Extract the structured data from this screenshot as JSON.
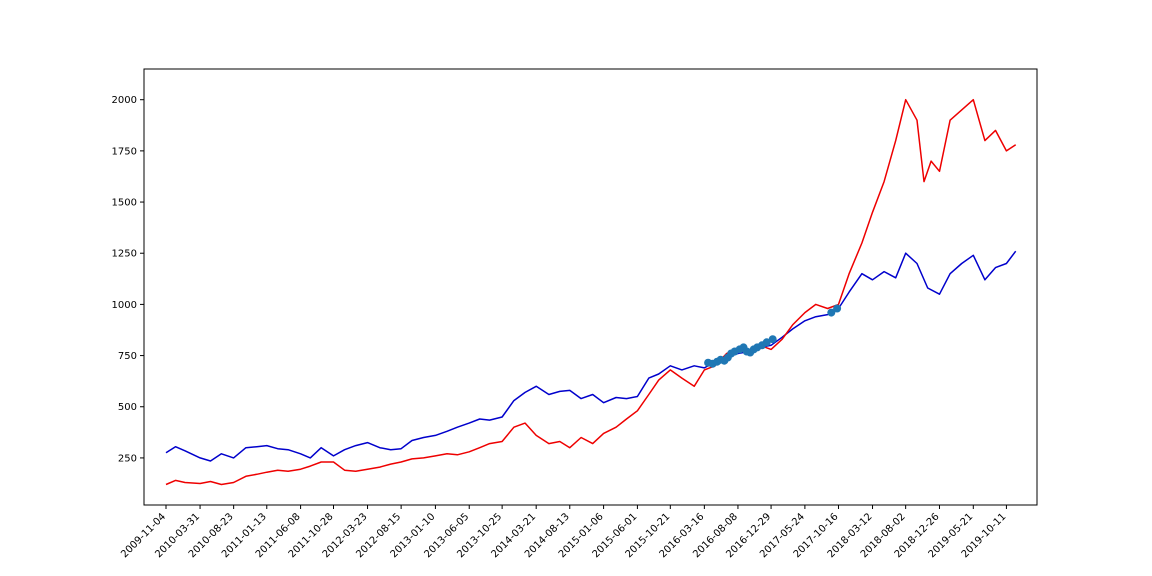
{
  "chart_data": {
    "type": "line",
    "title": "",
    "xlabel": "",
    "ylabel": "",
    "ylim": [
      20,
      2150
    ],
    "yticks": [
      250,
      500,
      750,
      1000,
      1250,
      1500,
      1750,
      2000
    ],
    "ytick_labels": [
      "250",
      "500",
      "750",
      "1000",
      "1250",
      "1500",
      "1750",
      "2000"
    ],
    "xlim": [
      "2009-08-01",
      "2020-02-20"
    ],
    "xticks": [
      "2009-11-04",
      "2010-03-31",
      "2010-08-23",
      "2011-01-13",
      "2011-06-08",
      "2011-10-28",
      "2012-03-23",
      "2012-08-15",
      "2013-01-10",
      "2013-06-05",
      "2013-10-25",
      "2014-03-21",
      "2014-08-13",
      "2015-01-06",
      "2015-06-01",
      "2015-10-21",
      "2016-03-16",
      "2016-08-08",
      "2016-12-29",
      "2017-05-24",
      "2017-10-16",
      "2018-03-12",
      "2018-08-02",
      "2018-12-26",
      "2019-05-21",
      "2019-10-11"
    ],
    "grid": false,
    "series": [
      {
        "color": "#0000cc",
        "x": [
          "2009-11-04",
          "2009-12-15",
          "2010-01-25",
          "2010-03-31",
          "2010-05-15",
          "2010-07-01",
          "2010-08-23",
          "2010-10-15",
          "2010-12-01",
          "2011-01-13",
          "2011-03-01",
          "2011-04-15",
          "2011-06-08",
          "2011-07-20",
          "2011-09-05",
          "2011-10-28",
          "2011-12-15",
          "2012-02-01",
          "2012-03-23",
          "2012-05-15",
          "2012-07-01",
          "2012-08-15",
          "2012-10-01",
          "2012-11-20",
          "2013-01-10",
          "2013-03-01",
          "2013-04-15",
          "2013-06-05",
          "2013-07-20",
          "2013-09-01",
          "2013-10-25",
          "2013-12-15",
          "2014-02-01",
          "2014-03-21",
          "2014-05-15",
          "2014-07-01",
          "2014-08-13",
          "2014-10-01",
          "2014-11-20",
          "2015-01-06",
          "2015-03-01",
          "2015-04-15",
          "2015-06-01",
          "2015-07-20",
          "2015-09-01",
          "2015-10-21",
          "2015-12-10",
          "2016-02-01",
          "2016-03-16",
          "2016-05-01",
          "2016-06-20",
          "2016-08-08",
          "2016-09-25",
          "2016-11-10",
          "2016-12-29",
          "2017-02-15",
          "2017-04-01",
          "2017-05-24",
          "2017-07-10",
          "2017-08-30",
          "2017-10-16",
          "2017-12-01",
          "2018-01-25",
          "2018-03-12",
          "2018-05-01",
          "2018-06-20",
          "2018-08-02",
          "2018-09-20",
          "2018-11-05",
          "2018-12-26",
          "2019-02-10",
          "2019-04-01",
          "2019-05-21",
          "2019-07-10",
          "2019-08-25",
          "2019-10-11",
          "2019-11-20"
        ],
        "y": [
          275,
          305,
          285,
          250,
          235,
          270,
          250,
          300,
          305,
          310,
          295,
          290,
          270,
          250,
          300,
          260,
          290,
          310,
          325,
          300,
          290,
          295,
          335,
          350,
          360,
          380,
          400,
          420,
          440,
          435,
          450,
          530,
          570,
          600,
          560,
          575,
          580,
          540,
          560,
          520,
          545,
          540,
          550,
          640,
          660,
          700,
          680,
          700,
          690,
          720,
          740,
          760,
          770,
          790,
          800,
          840,
          880,
          920,
          940,
          950,
          980,
          1060,
          1150,
          1120,
          1160,
          1130,
          1250,
          1200,
          1080,
          1050,
          1150,
          1200,
          1240,
          1120,
          1180,
          1200,
          1260
        ]
      },
      {
        "color": "#ee0000",
        "x": [
          "2009-11-04",
          "2009-12-15",
          "2010-01-25",
          "2010-03-31",
          "2010-05-15",
          "2010-07-01",
          "2010-08-23",
          "2010-10-15",
          "2010-12-01",
          "2011-01-13",
          "2011-03-01",
          "2011-04-15",
          "2011-06-08",
          "2011-07-20",
          "2011-09-05",
          "2011-10-28",
          "2011-12-15",
          "2012-02-01",
          "2012-03-23",
          "2012-05-15",
          "2012-07-01",
          "2012-08-15",
          "2012-10-01",
          "2012-11-20",
          "2013-01-10",
          "2013-03-01",
          "2013-04-15",
          "2013-06-05",
          "2013-07-20",
          "2013-09-01",
          "2013-10-25",
          "2013-12-15",
          "2014-02-01",
          "2014-03-21",
          "2014-05-15",
          "2014-07-01",
          "2014-08-13",
          "2014-10-01",
          "2014-11-20",
          "2015-01-06",
          "2015-03-01",
          "2015-04-15",
          "2015-06-01",
          "2015-07-20",
          "2015-09-01",
          "2015-10-21",
          "2015-12-10",
          "2016-02-01",
          "2016-03-16",
          "2016-05-01",
          "2016-06-20",
          "2016-08-08",
          "2016-09-25",
          "2016-11-10",
          "2016-12-29",
          "2017-02-15",
          "2017-04-01",
          "2017-05-24",
          "2017-07-10",
          "2017-08-30",
          "2017-10-16",
          "2017-12-01",
          "2018-01-25",
          "2018-03-12",
          "2018-05-01",
          "2018-06-20",
          "2018-08-02",
          "2018-09-20",
          "2018-10-20",
          "2018-11-20",
          "2018-12-26",
          "2019-02-10",
          "2019-04-01",
          "2019-05-21",
          "2019-07-10",
          "2019-08-25",
          "2019-10-11",
          "2019-11-20"
        ],
        "y": [
          120,
          140,
          130,
          125,
          135,
          120,
          130,
          160,
          170,
          180,
          190,
          185,
          195,
          210,
          230,
          230,
          190,
          185,
          195,
          205,
          220,
          230,
          245,
          250,
          260,
          270,
          265,
          280,
          300,
          320,
          330,
          400,
          420,
          360,
          320,
          330,
          300,
          350,
          320,
          370,
          400,
          440,
          480,
          560,
          630,
          680,
          640,
          600,
          680,
          700,
          760,
          780,
          760,
          800,
          780,
          830,
          900,
          960,
          1000,
          980,
          1000,
          1150,
          1300,
          1450,
          1600,
          1800,
          2000,
          1900,
          1600,
          1700,
          1650,
          1900,
          1950,
          2000,
          1800,
          1850,
          1750,
          1780
        ]
      }
    ],
    "markers": {
      "color": "#1f77b4",
      "x": [
        "2016-04-01",
        "2016-04-20",
        "2016-05-10",
        "2016-05-25",
        "2016-06-10",
        "2016-06-25",
        "2016-07-10",
        "2016-07-25",
        "2016-08-15",
        "2016-09-01",
        "2016-09-15",
        "2016-09-30",
        "2016-10-15",
        "2016-10-30",
        "2016-11-20",
        "2016-12-10",
        "2017-01-05",
        "2017-09-15",
        "2017-10-10"
      ],
      "y": [
        715,
        710,
        720,
        730,
        725,
        740,
        760,
        770,
        780,
        790,
        770,
        765,
        780,
        790,
        800,
        815,
        830,
        960,
        980
      ]
    }
  }
}
